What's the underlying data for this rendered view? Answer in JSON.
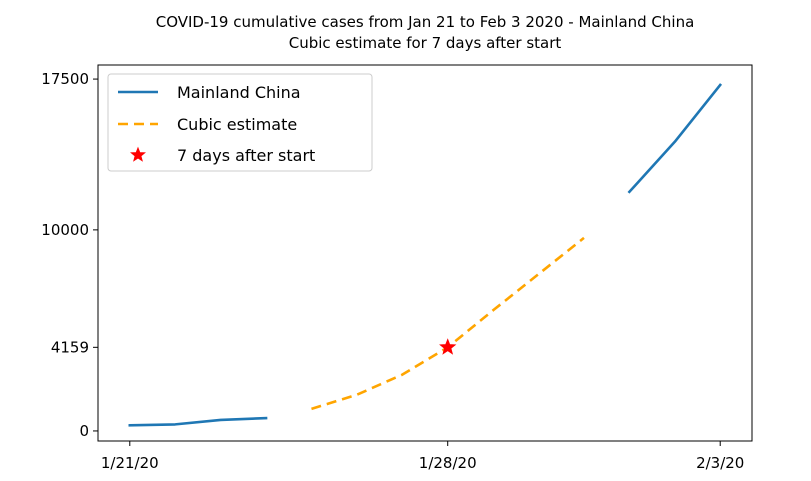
{
  "chart_data": {
    "type": "line",
    "title": "COVID-19 cumulative cases from Jan 21 to Feb 3 2020 - Mainland China",
    "subtitle": "Cubic estimate for 7 days after start",
    "xlabel": "",
    "ylabel": "",
    "x_ticks": [
      {
        "day": 0,
        "label": "1/21/20"
      },
      {
        "day": 7,
        "label": "1/28/20"
      },
      {
        "day": 13,
        "label": "2/3/20"
      }
    ],
    "y_ticks": [
      0,
      4159,
      10000,
      17500
    ],
    "xlim": [
      -0.7,
      13.7
    ],
    "ylim": [
      -500,
      18200
    ],
    "grid": false,
    "legend": {
      "position": "top-left",
      "entries": [
        {
          "label": "Mainland China",
          "kind": "line",
          "color": "#1f77b4"
        },
        {
          "label": "Cubic estimate",
          "kind": "dashed",
          "color": "#ffa500"
        },
        {
          "label": "7 days after start",
          "kind": "star",
          "color": "#ff0000"
        }
      ]
    },
    "series": [
      {
        "name": "Mainland China",
        "style": "solid",
        "color": "#1f77b4",
        "segments": [
          [
            [
              0,
              278
            ],
            [
              1,
              326
            ],
            [
              2,
              547
            ],
            [
              3,
              639
            ]
          ],
          [
            [
              11,
              11891
            ],
            [
              12,
              14380
            ],
            [
              13,
              17205
            ]
          ]
        ]
      },
      {
        "name": "Cubic estimate",
        "style": "dashed",
        "color": "#ffa500",
        "points": [
          [
            4,
            1100
          ],
          [
            5,
            1800
          ],
          [
            6,
            2800
          ],
          [
            7,
            4159
          ],
          [
            8,
            6000
          ],
          [
            9,
            7800
          ],
          [
            10,
            9600
          ]
        ]
      }
    ],
    "markers": [
      {
        "name": "7 days after start",
        "x": 7,
        "y": 4159,
        "shape": "star",
        "color": "#ff0000"
      }
    ]
  }
}
